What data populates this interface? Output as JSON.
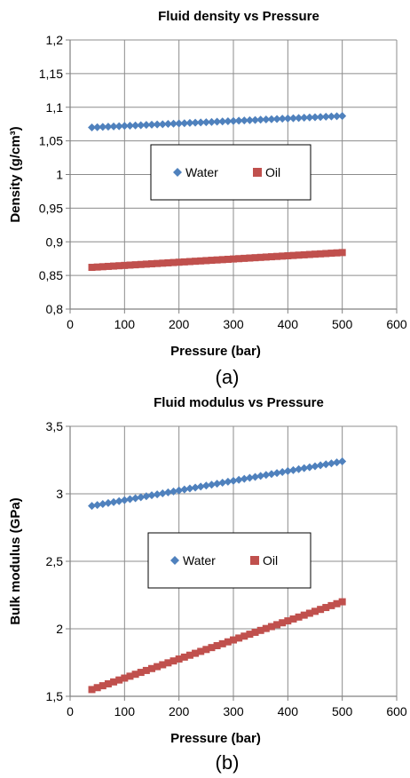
{
  "chart_data": [
    {
      "type": "scatter",
      "title": "Fluid density vs Pressure",
      "xlabel": "Pressure (bar)",
      "ylabel": "Density (g/cm³)",
      "xlim": [
        0,
        600
      ],
      "ylim": [
        0.8,
        1.2
      ],
      "x_ticks": [
        "0",
        "100",
        "200",
        "300",
        "400",
        "500",
        "600"
      ],
      "y_ticks": [
        "0,8",
        "0,85",
        "0,9",
        "0,95",
        "1",
        "1,05",
        "1,1",
        "1,15",
        "1,2"
      ],
      "grid": true,
      "legend": "center",
      "caption": "(a)",
      "series": [
        {
          "name": "Water",
          "marker": "diamond",
          "color": "#4f81bd",
          "x_start": 40,
          "x_end": 500,
          "x_step": 10,
          "y_start": 1.07,
          "y_end": 1.087
        },
        {
          "name": "Oil",
          "marker": "square",
          "color": "#c0504d",
          "x_start": 40,
          "x_end": 500,
          "x_step": 10,
          "y_start": 0.862,
          "y_end": 0.884
        }
      ]
    },
    {
      "type": "scatter",
      "title": "Fluid modulus vs Pressure",
      "xlabel": "Pressure (bar)",
      "ylabel": "Bulk modulus (GPa)",
      "xlim": [
        0,
        600
      ],
      "ylim": [
        1.5,
        3.5
      ],
      "x_ticks": [
        "0",
        "100",
        "200",
        "300",
        "400",
        "500",
        "600"
      ],
      "y_ticks": [
        "1,5",
        "2",
        "2,5",
        "3",
        "3,5"
      ],
      "grid": true,
      "legend": "center",
      "caption": "(b)",
      "series": [
        {
          "name": "Water",
          "marker": "diamond",
          "color": "#4f81bd",
          "x_start": 40,
          "x_end": 500,
          "x_step": 10,
          "y_start": 2.91,
          "y_end": 3.24
        },
        {
          "name": "Oil",
          "marker": "square",
          "color": "#c0504d",
          "x_start": 40,
          "x_end": 500,
          "x_step": 10,
          "y_start": 1.55,
          "y_end": 2.2
        }
      ]
    }
  ]
}
